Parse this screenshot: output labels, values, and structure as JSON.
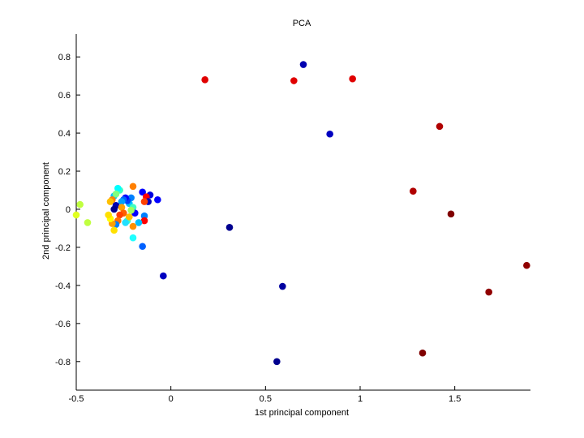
{
  "chart_data": {
    "type": "scatter",
    "title": "PCA",
    "xlabel": "1st principal component",
    "ylabel": "2nd principal component",
    "xlim": [
      -0.5,
      1.9
    ],
    "ylim": [
      -0.95,
      0.92
    ],
    "grid": false,
    "legend": "none",
    "xticks": [
      -0.5,
      0,
      0.5,
      1,
      1.5
    ],
    "xtick_labels": [
      "-0.5",
      "0",
      "0.5",
      "1",
      "1.5"
    ],
    "yticks": [
      -0.8,
      -0.6,
      -0.4,
      -0.2,
      0,
      0.2,
      0.4,
      0.6,
      0.8
    ],
    "ytick_labels": [
      "-0.8",
      "-0.6",
      "-0.4",
      "-0.2",
      "0",
      "0.2",
      "0.4",
      "0.6",
      "0.8"
    ],
    "colormap": [
      "#00008f",
      "#0000ff",
      "#0080ff",
      "#00ffff",
      "#80ff80",
      "#ffff00",
      "#ff8000",
      "#ff0000",
      "#800000"
    ],
    "points": [
      {
        "x": 0.18,
        "y": 0.68,
        "color": "#e00000"
      },
      {
        "x": 0.65,
        "y": 0.675,
        "color": "#e00000"
      },
      {
        "x": 0.96,
        "y": 0.685,
        "color": "#e00000"
      },
      {
        "x": 0.7,
        "y": 0.76,
        "color": "#0000b0"
      },
      {
        "x": 0.84,
        "y": 0.395,
        "color": "#0000c0"
      },
      {
        "x": 1.42,
        "y": 0.435,
        "color": "#b00000"
      },
      {
        "x": 1.28,
        "y": 0.095,
        "color": "#b00000"
      },
      {
        "x": 1.48,
        "y": -0.025,
        "color": "#800000"
      },
      {
        "x": 1.88,
        "y": -0.295,
        "color": "#900000"
      },
      {
        "x": 1.68,
        "y": -0.435,
        "color": "#900000"
      },
      {
        "x": 1.33,
        "y": -0.755,
        "color": "#800000"
      },
      {
        "x": 0.31,
        "y": -0.095,
        "color": "#00008f"
      },
      {
        "x": 0.59,
        "y": -0.405,
        "color": "#0000a0"
      },
      {
        "x": 0.56,
        "y": -0.8,
        "color": "#00008f"
      },
      {
        "x": -0.04,
        "y": -0.35,
        "color": "#0000c0"
      },
      {
        "x": -0.15,
        "y": -0.195,
        "color": "#0060ff"
      },
      {
        "x": -0.2,
        "y": -0.15,
        "color": "#20ffff"
      },
      {
        "x": -0.11,
        "y": 0.075,
        "color": "#0000e0"
      },
      {
        "x": -0.07,
        "y": 0.05,
        "color": "#0000ff"
      },
      {
        "x": -0.15,
        "y": 0.09,
        "color": "#0000ff"
      },
      {
        "x": -0.13,
        "y": 0.065,
        "color": "#ff0000"
      },
      {
        "x": -0.12,
        "y": 0.04,
        "color": "#0000c0"
      },
      {
        "x": -0.14,
        "y": 0.04,
        "color": "#ff4000"
      },
      {
        "x": -0.14,
        "y": -0.035,
        "color": "#0080ff"
      },
      {
        "x": -0.14,
        "y": -0.06,
        "color": "#ff0000"
      },
      {
        "x": -0.17,
        "y": -0.07,
        "color": "#00c0ff"
      },
      {
        "x": -0.2,
        "y": 0.12,
        "color": "#ff8000"
      },
      {
        "x": -0.21,
        "y": 0.06,
        "color": "#0080ff"
      },
      {
        "x": -0.22,
        "y": 0.03,
        "color": "#00c0ff"
      },
      {
        "x": -0.2,
        "y": 0.01,
        "color": "#40ffc0"
      },
      {
        "x": -0.19,
        "y": -0.02,
        "color": "#0000ff"
      },
      {
        "x": -0.2,
        "y": -0.09,
        "color": "#ff9000"
      },
      {
        "x": -0.23,
        "y": 0.045,
        "color": "#0040ff"
      },
      {
        "x": -0.24,
        "y": 0.06,
        "color": "#0000ff"
      },
      {
        "x": -0.25,
        "y": 0.05,
        "color": "#0060ff"
      },
      {
        "x": -0.26,
        "y": 0.04,
        "color": "#00a0ff"
      },
      {
        "x": -0.27,
        "y": 0.1,
        "color": "#40ffc0"
      },
      {
        "x": -0.28,
        "y": 0.11,
        "color": "#00ffff"
      },
      {
        "x": -0.3,
        "y": 0.07,
        "color": "#00c0ff"
      },
      {
        "x": -0.29,
        "y": 0.08,
        "color": "#80ff80"
      },
      {
        "x": -0.31,
        "y": 0.05,
        "color": "#ff8000"
      },
      {
        "x": -0.32,
        "y": 0.04,
        "color": "#ffc000"
      },
      {
        "x": -0.29,
        "y": 0.02,
        "color": "#0000b0"
      },
      {
        "x": -0.3,
        "y": 0.0,
        "color": "#00008f"
      },
      {
        "x": -0.26,
        "y": 0.01,
        "color": "#ffa000"
      },
      {
        "x": -0.25,
        "y": -0.02,
        "color": "#ff6000"
      },
      {
        "x": -0.27,
        "y": -0.03,
        "color": "#ff4000"
      },
      {
        "x": -0.28,
        "y": -0.06,
        "color": "#ff7000"
      },
      {
        "x": -0.29,
        "y": -0.08,
        "color": "#0080ff"
      },
      {
        "x": -0.3,
        "y": -0.11,
        "color": "#ffe000"
      },
      {
        "x": -0.31,
        "y": -0.075,
        "color": "#ffa000"
      },
      {
        "x": -0.32,
        "y": -0.05,
        "color": "#ffff00"
      },
      {
        "x": -0.33,
        "y": -0.03,
        "color": "#ffe000"
      },
      {
        "x": -0.23,
        "y": -0.06,
        "color": "#40ffc0"
      },
      {
        "x": -0.24,
        "y": -0.07,
        "color": "#20e0ff"
      },
      {
        "x": -0.22,
        "y": -0.04,
        "color": "#ffc000"
      },
      {
        "x": -0.21,
        "y": -0.005,
        "color": "#a0ff60"
      },
      {
        "x": -0.48,
        "y": 0.025,
        "color": "#c0ff40"
      },
      {
        "x": -0.5,
        "y": -0.03,
        "color": "#e0ff20"
      },
      {
        "x": -0.44,
        "y": -0.07,
        "color": "#c0ff40"
      }
    ]
  }
}
